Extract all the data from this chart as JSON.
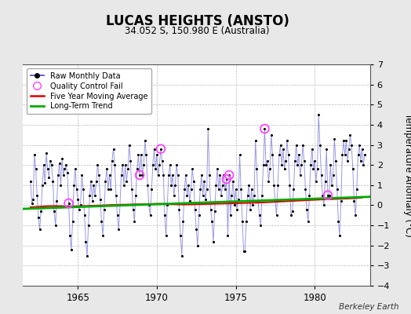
{
  "title": "LUCAS HEIGHTS (ANSTO)",
  "subtitle": "34.052 S, 150.980 E (Australia)",
  "ylabel": "Temperature Anomaly (°C)",
  "credit": "Berkeley Earth",
  "bg_color": "#e8e8e8",
  "plot_bg_color": "#ffffff",
  "ylim": [
    -4,
    7
  ],
  "yticks": [
    -4,
    -3,
    -2,
    -1,
    0,
    1,
    2,
    3,
    4,
    5,
    6,
    7
  ],
  "xlim": [
    1961.5,
    1983.5
  ],
  "xticks": [
    1965,
    1970,
    1975,
    1980
  ],
  "monthly_data": [
    [
      1962.0,
      1.2
    ],
    [
      1962.083,
      0.1
    ],
    [
      1962.167,
      0.3
    ],
    [
      1962.25,
      2.5
    ],
    [
      1962.333,
      1.8
    ],
    [
      1962.417,
      0.5
    ],
    [
      1962.5,
      -0.6
    ],
    [
      1962.583,
      -1.2
    ],
    [
      1962.667,
      -0.3
    ],
    [
      1962.75,
      1.0
    ],
    [
      1962.833,
      2.0
    ],
    [
      1962.917,
      1.1
    ],
    [
      1963.0,
      2.6
    ],
    [
      1963.083,
      1.8
    ],
    [
      1963.167,
      1.4
    ],
    [
      1963.25,
      2.2
    ],
    [
      1963.333,
      2.0
    ],
    [
      1963.417,
      1.2
    ],
    [
      1963.5,
      -0.3
    ],
    [
      1963.583,
      -1.0
    ],
    [
      1963.667,
      0.2
    ],
    [
      1963.75,
      1.5
    ],
    [
      1963.833,
      2.1
    ],
    [
      1963.917,
      1.0
    ],
    [
      1964.0,
      2.3
    ],
    [
      1964.083,
      1.5
    ],
    [
      1964.167,
      1.8
    ],
    [
      1964.25,
      2.0
    ],
    [
      1964.333,
      1.6
    ],
    [
      1964.417,
      0.1
    ],
    [
      1964.5,
      -1.5
    ],
    [
      1964.583,
      -2.2
    ],
    [
      1964.667,
      -0.8
    ],
    [
      1964.75,
      1.0
    ],
    [
      1964.833,
      1.8
    ],
    [
      1964.917,
      0.8
    ],
    [
      1965.0,
      0.3
    ],
    [
      1965.083,
      -0.2
    ],
    [
      1965.167,
      0.0
    ],
    [
      1965.25,
      1.5
    ],
    [
      1965.333,
      0.8
    ],
    [
      1965.417,
      -0.5
    ],
    [
      1965.5,
      -1.8
    ],
    [
      1965.583,
      -2.5
    ],
    [
      1965.667,
      -1.0
    ],
    [
      1965.75,
      0.5
    ],
    [
      1965.833,
      1.2
    ],
    [
      1965.917,
      0.2
    ],
    [
      1966.0,
      1.0
    ],
    [
      1966.083,
      0.5
    ],
    [
      1966.167,
      1.2
    ],
    [
      1966.25,
      2.0
    ],
    [
      1966.333,
      1.5
    ],
    [
      1966.417,
      0.3
    ],
    [
      1966.5,
      -0.8
    ],
    [
      1966.583,
      -1.5
    ],
    [
      1966.667,
      -0.2
    ],
    [
      1966.75,
      1.2
    ],
    [
      1966.833,
      1.8
    ],
    [
      1966.917,
      0.8
    ],
    [
      1967.0,
      1.5
    ],
    [
      1967.083,
      0.8
    ],
    [
      1967.167,
      2.2
    ],
    [
      1967.25,
      2.8
    ],
    [
      1967.333,
      2.0
    ],
    [
      1967.417,
      0.5
    ],
    [
      1967.5,
      -0.5
    ],
    [
      1967.583,
      -1.2
    ],
    [
      1967.667,
      0.0
    ],
    [
      1967.75,
      1.5
    ],
    [
      1967.833,
      2.0
    ],
    [
      1967.917,
      1.0
    ],
    [
      1968.0,
      2.0
    ],
    [
      1968.083,
      1.2
    ],
    [
      1968.167,
      1.8
    ],
    [
      1968.25,
      3.0
    ],
    [
      1968.333,
      2.2
    ],
    [
      1968.417,
      0.8
    ],
    [
      1968.5,
      -0.2
    ],
    [
      1968.583,
      -0.8
    ],
    [
      1968.667,
      0.5
    ],
    [
      1968.75,
      1.8
    ],
    [
      1968.833,
      2.5
    ],
    [
      1968.917,
      1.5
    ],
    [
      1969.0,
      2.5
    ],
    [
      1969.083,
      1.5
    ],
    [
      1969.167,
      2.0
    ],
    [
      1969.25,
      3.2
    ],
    [
      1969.333,
      2.5
    ],
    [
      1969.417,
      1.0
    ],
    [
      1969.5,
      0.0
    ],
    [
      1969.583,
      -0.5
    ],
    [
      1969.667,
      0.8
    ],
    [
      1969.75,
      2.0
    ],
    [
      1969.833,
      2.8
    ],
    [
      1969.917,
      1.8
    ],
    [
      1970.0,
      2.5
    ],
    [
      1970.083,
      1.5
    ],
    [
      1970.167,
      2.0
    ],
    [
      1970.25,
      2.8
    ],
    [
      1970.333,
      2.2
    ],
    [
      1970.417,
      1.5
    ],
    [
      1970.5,
      -0.5
    ],
    [
      1970.583,
      -1.5
    ],
    [
      1970.667,
      0.0
    ],
    [
      1970.75,
      1.5
    ],
    [
      1970.833,
      2.0
    ],
    [
      1970.917,
      1.0
    ],
    [
      1971.0,
      1.5
    ],
    [
      1971.083,
      0.5
    ],
    [
      1971.167,
      1.0
    ],
    [
      1971.25,
      2.0
    ],
    [
      1971.333,
      1.5
    ],
    [
      1971.417,
      -0.2
    ],
    [
      1971.5,
      -1.5
    ],
    [
      1971.583,
      -2.5
    ],
    [
      1971.667,
      -0.8
    ],
    [
      1971.75,
      0.8
    ],
    [
      1971.833,
      1.5
    ],
    [
      1971.917,
      0.5
    ],
    [
      1972.0,
      1.0
    ],
    [
      1972.083,
      0.2
    ],
    [
      1972.167,
      0.8
    ],
    [
      1972.25,
      1.8
    ],
    [
      1972.333,
      1.2
    ],
    [
      1972.417,
      -0.2
    ],
    [
      1972.5,
      -1.2
    ],
    [
      1972.583,
      -2.0
    ],
    [
      1972.667,
      -0.5
    ],
    [
      1972.75,
      0.8
    ],
    [
      1972.833,
      1.5
    ],
    [
      1972.917,
      0.5
    ],
    [
      1973.0,
      1.2
    ],
    [
      1973.083,
      0.3
    ],
    [
      1973.167,
      0.8
    ],
    [
      1973.25,
      3.8
    ],
    [
      1973.333,
      1.5
    ],
    [
      1973.417,
      -0.2
    ],
    [
      1973.5,
      -0.8
    ],
    [
      1973.583,
      -1.8
    ],
    [
      1973.667,
      -0.3
    ],
    [
      1973.75,
      1.0
    ],
    [
      1973.833,
      1.8
    ],
    [
      1973.917,
      0.8
    ],
    [
      1974.0,
      1.5
    ],
    [
      1974.083,
      0.5
    ],
    [
      1974.167,
      1.0
    ],
    [
      1974.25,
      1.5
    ],
    [
      1974.333,
      0.8
    ],
    [
      1974.417,
      1.3
    ],
    [
      1974.5,
      -1.5
    ],
    [
      1974.583,
      1.5
    ],
    [
      1974.667,
      -0.5
    ],
    [
      1974.75,
      0.5
    ],
    [
      1974.833,
      1.2
    ],
    [
      1974.917,
      0.0
    ],
    [
      1975.0,
      0.8
    ],
    [
      1975.083,
      -0.2
    ],
    [
      1975.167,
      0.3
    ],
    [
      1975.25,
      2.5
    ],
    [
      1975.333,
      0.8
    ],
    [
      1975.417,
      -0.8
    ],
    [
      1975.5,
      -2.3
    ],
    [
      1975.583,
      -2.3
    ],
    [
      1975.667,
      -0.8
    ],
    [
      1975.75,
      0.5
    ],
    [
      1975.833,
      1.0
    ],
    [
      1975.917,
      -0.2
    ],
    [
      1976.0,
      0.8
    ],
    [
      1976.083,
      0.0
    ],
    [
      1976.167,
      0.5
    ],
    [
      1976.25,
      3.2
    ],
    [
      1976.333,
      1.8
    ],
    [
      1976.417,
      0.2
    ],
    [
      1976.5,
      -0.5
    ],
    [
      1976.583,
      -1.0
    ],
    [
      1976.667,
      0.5
    ],
    [
      1976.75,
      2.0
    ],
    [
      1976.833,
      3.8
    ],
    [
      1976.917,
      2.0
    ],
    [
      1977.0,
      2.2
    ],
    [
      1977.083,
      1.2
    ],
    [
      1977.167,
      1.8
    ],
    [
      1977.25,
      3.5
    ],
    [
      1977.333,
      2.5
    ],
    [
      1977.417,
      1.0
    ],
    [
      1977.5,
      0.2
    ],
    [
      1977.583,
      -0.5
    ],
    [
      1977.667,
      1.0
    ],
    [
      1977.75,
      2.5
    ],
    [
      1977.833,
      3.0
    ],
    [
      1977.917,
      2.0
    ],
    [
      1978.0,
      2.8
    ],
    [
      1978.083,
      1.8
    ],
    [
      1978.167,
      2.2
    ],
    [
      1978.25,
      3.2
    ],
    [
      1978.333,
      2.5
    ],
    [
      1978.417,
      1.0
    ],
    [
      1978.5,
      -0.5
    ],
    [
      1978.583,
      -0.3
    ],
    [
      1978.667,
      0.8
    ],
    [
      1978.75,
      2.2
    ],
    [
      1978.833,
      3.0
    ],
    [
      1978.917,
      2.0
    ],
    [
      1979.0,
      2.5
    ],
    [
      1979.083,
      1.5
    ],
    [
      1979.167,
      2.0
    ],
    [
      1979.25,
      3.0
    ],
    [
      1979.333,
      2.2
    ],
    [
      1979.417,
      0.8
    ],
    [
      1979.5,
      -0.2
    ],
    [
      1979.583,
      -0.8
    ],
    [
      1979.667,
      0.5
    ],
    [
      1979.75,
      2.0
    ],
    [
      1979.833,
      2.8
    ],
    [
      1979.917,
      1.8
    ],
    [
      1980.0,
      2.2
    ],
    [
      1980.083,
      1.2
    ],
    [
      1980.167,
      1.8
    ],
    [
      1980.25,
      4.5
    ],
    [
      1980.333,
      3.0
    ],
    [
      1980.417,
      1.5
    ],
    [
      1980.5,
      0.5
    ],
    [
      1980.583,
      0.0
    ],
    [
      1980.667,
      1.2
    ],
    [
      1980.75,
      2.8
    ],
    [
      1980.833,
      0.5
    ],
    [
      1980.917,
      0.5
    ],
    [
      1981.0,
      2.0
    ],
    [
      1981.083,
      1.0
    ],
    [
      1981.167,
      1.5
    ],
    [
      1981.25,
      3.3
    ],
    [
      1981.333,
      2.2
    ],
    [
      1981.417,
      0.8
    ],
    [
      1981.5,
      -0.8
    ],
    [
      1981.583,
      -1.5
    ],
    [
      1981.667,
      0.2
    ],
    [
      1981.75,
      2.5
    ],
    [
      1981.833,
      3.2
    ],
    [
      1981.917,
      2.5
    ],
    [
      1982.0,
      3.2
    ],
    [
      1982.083,
      2.2
    ],
    [
      1982.167,
      2.8
    ],
    [
      1982.25,
      3.5
    ],
    [
      1982.333,
      3.0
    ],
    [
      1982.417,
      1.8
    ],
    [
      1982.5,
      0.2
    ],
    [
      1982.583,
      -0.5
    ],
    [
      1982.667,
      0.8
    ],
    [
      1982.75,
      2.5
    ],
    [
      1982.833,
      3.0
    ],
    [
      1982.917,
      2.2
    ],
    [
      1983.0,
      2.8
    ],
    [
      1983.083,
      2.0
    ],
    [
      1983.167,
      2.5
    ]
  ],
  "qc_fail_points": [
    [
      1964.417,
      0.1
    ],
    [
      1968.917,
      1.5
    ],
    [
      1970.25,
      2.8
    ],
    [
      1974.417,
      1.3
    ],
    [
      1974.583,
      1.5
    ],
    [
      1976.833,
      3.8
    ],
    [
      1980.833,
      0.5
    ]
  ],
  "moving_avg": [
    [
      1962.0,
      -0.1
    ],
    [
      1962.5,
      -0.08
    ],
    [
      1963.0,
      -0.05
    ],
    [
      1963.5,
      -0.04
    ],
    [
      1964.0,
      -0.05
    ],
    [
      1964.5,
      -0.06
    ],
    [
      1965.0,
      -0.05
    ],
    [
      1965.5,
      -0.04
    ],
    [
      1966.0,
      -0.02
    ],
    [
      1966.5,
      -0.01
    ],
    [
      1967.0,
      0.01
    ],
    [
      1967.5,
      0.02
    ],
    [
      1968.0,
      0.03
    ],
    [
      1968.5,
      0.04
    ],
    [
      1969.0,
      0.05
    ],
    [
      1969.5,
      0.06
    ],
    [
      1970.0,
      0.07
    ],
    [
      1970.5,
      0.06
    ],
    [
      1971.0,
      0.05
    ],
    [
      1971.5,
      0.04
    ],
    [
      1972.0,
      0.04
    ],
    [
      1972.5,
      0.05
    ],
    [
      1973.0,
      0.06
    ],
    [
      1973.5,
      0.07
    ],
    [
      1974.0,
      0.08
    ],
    [
      1974.5,
      0.09
    ],
    [
      1975.0,
      0.1
    ],
    [
      1975.5,
      0.11
    ],
    [
      1976.0,
      0.12
    ],
    [
      1976.5,
      0.13
    ],
    [
      1977.0,
      0.15
    ],
    [
      1977.5,
      0.17
    ],
    [
      1978.0,
      0.19
    ],
    [
      1978.5,
      0.21
    ],
    [
      1979.0,
      0.23
    ],
    [
      1979.5,
      0.25
    ],
    [
      1980.0,
      0.27
    ],
    [
      1980.5,
      0.29
    ],
    [
      1981.0,
      0.3
    ],
    [
      1981.5,
      0.32
    ],
    [
      1982.0,
      0.33
    ],
    [
      1982.5,
      0.35
    ],
    [
      1983.0,
      0.38
    ]
  ],
  "trend_line": [
    [
      1961.5,
      -0.18
    ],
    [
      1983.5,
      0.42
    ]
  ],
  "line_color": "#4444cc",
  "line_alpha": 0.55,
  "marker_color": "#000000",
  "moving_avg_color": "#dd0000",
  "trend_color": "#00aa00",
  "qc_color": "#ff44ff"
}
